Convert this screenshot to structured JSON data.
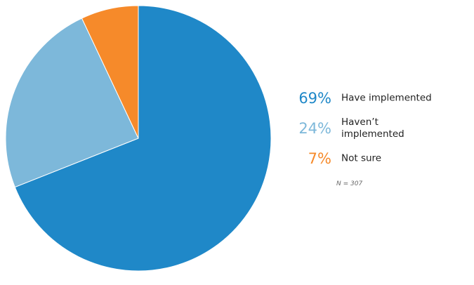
{
  "chart_data": {
    "type": "pie",
    "title": "",
    "slices": [
      {
        "value": 69,
        "pct_label": "69%",
        "label": "Have implemented",
        "color": "#1f88c8"
      },
      {
        "value": 24,
        "pct_label": "24%",
        "label": "Haven’t implemented",
        "color": "#7db8da"
      },
      {
        "value": 7,
        "pct_label": "7%",
        "label": "Not sure",
        "color": "#f68a2a"
      }
    ],
    "legend_position": "right",
    "note": "N = 307"
  }
}
